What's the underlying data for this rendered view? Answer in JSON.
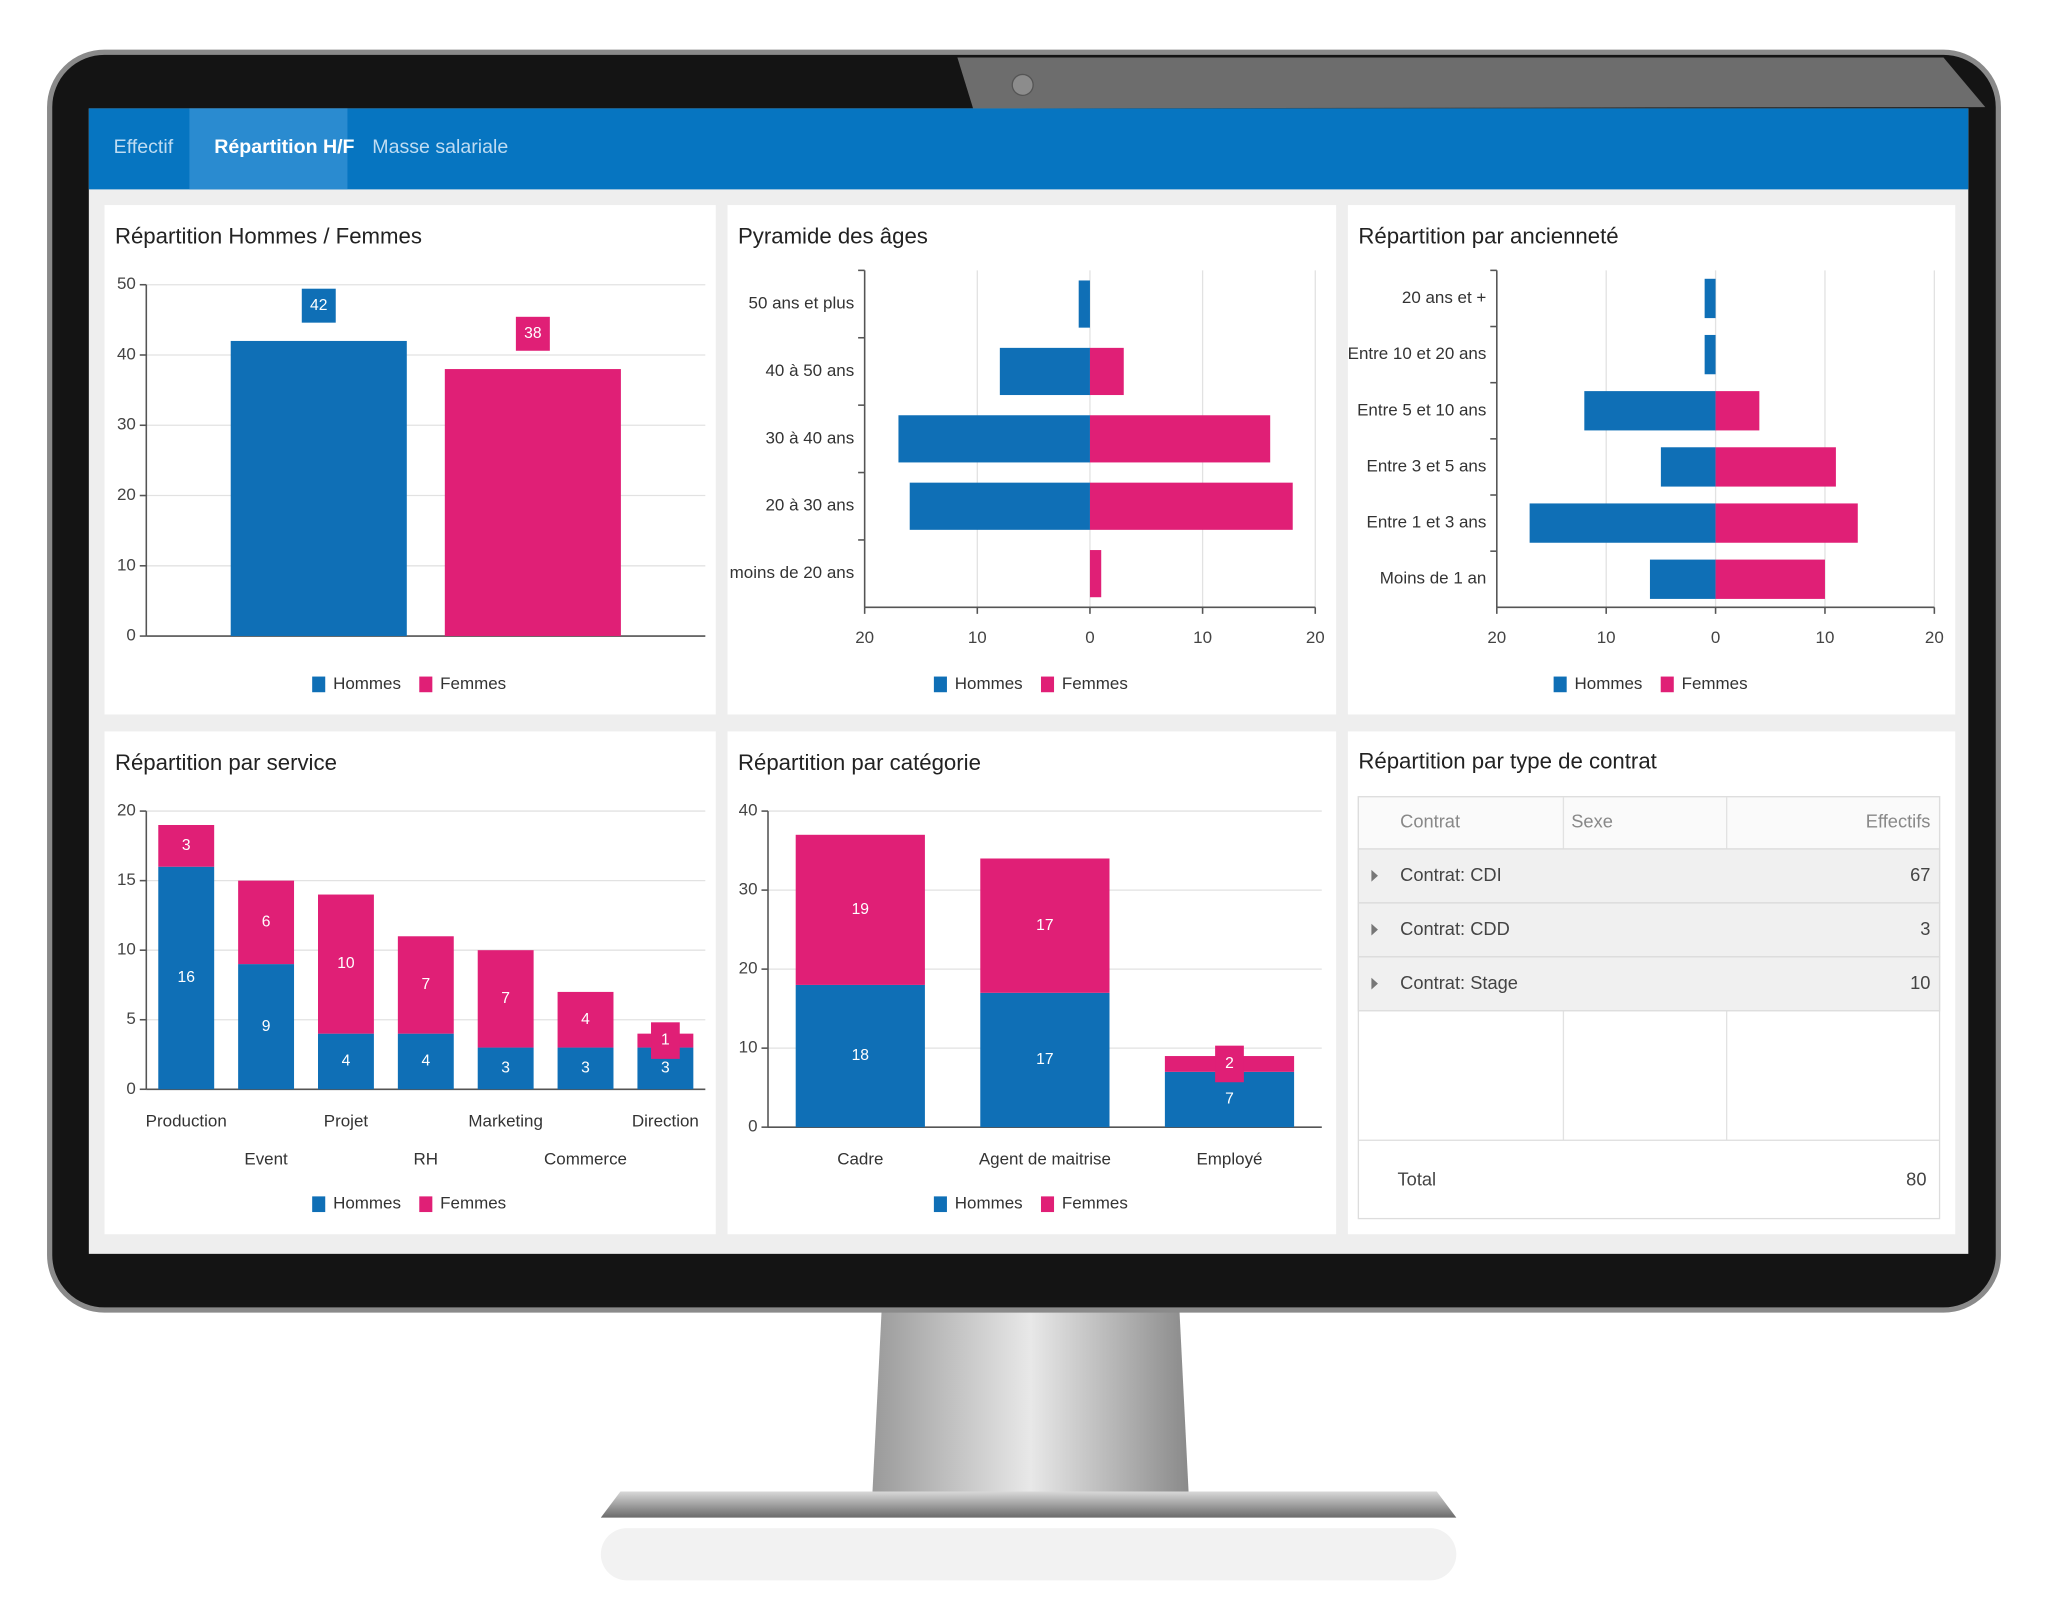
{
  "tabs": [
    "Effectif",
    "Répartition H/F",
    "Masse salariale"
  ],
  "active_tab": 1,
  "chart_data": [
    {
      "type": "bar",
      "title": "Répartition Hommes / Femmes",
      "categories": [
        null
      ],
      "series": [
        {
          "name": "Hommes",
          "color": "#0f6fb6",
          "values": [
            42
          ]
        },
        {
          "name": "Femmes",
          "color": "#e01f76",
          "values": [
            38
          ]
        }
      ],
      "ylim": [
        0,
        50
      ],
      "yticks": [
        0,
        10,
        20,
        30,
        40,
        50
      ],
      "grid": true,
      "data_labels": true
    },
    {
      "type": "pyramid",
      "title": "Pyramide des âges",
      "categories": [
        "50 ans et plus",
        "40 à 50 ans",
        "30 à 40 ans",
        "20 à 30 ans",
        "moins de 20 ans"
      ],
      "series": [
        {
          "name": "Hommes",
          "color": "#0f6fb6",
          "values": [
            -1,
            -8,
            -17,
            -16,
            0
          ]
        },
        {
          "name": "Femmes",
          "color": "#e01f76",
          "values": [
            0,
            3,
            16,
            18,
            1
          ]
        }
      ],
      "xlim": [
        -20,
        20
      ],
      "xticks": [
        {
          "value": -20,
          "label": "20"
        },
        {
          "value": -10,
          "label": "10"
        },
        0,
        10,
        20
      ],
      "grid": true
    },
    {
      "type": "pyramid",
      "title": "Répartition par ancienneté",
      "categories": [
        "20 ans et +",
        "Entre 10 et 20 ans",
        "Entre 5 et 10 ans",
        "Entre 3 et 5 ans",
        "Entre 1 et 3 ans",
        "Moins de 1 an"
      ],
      "series": [
        {
          "name": "Hommes",
          "color": "#0f6fb6",
          "values": [
            -1,
            -1,
            -12,
            -5,
            -17,
            -6
          ]
        },
        {
          "name": "Femmes",
          "color": "#e01f76",
          "values": [
            0,
            0,
            4,
            11,
            13,
            10
          ]
        }
      ],
      "xlim": [
        -20,
        20
      ],
      "xticks": [
        {
          "value": -20,
          "label": "20"
        },
        {
          "value": -10,
          "label": "10"
        },
        0,
        10,
        20
      ],
      "grid": true
    },
    {
      "type": "stacked_bar",
      "title": "Répartition par service",
      "categories": [
        "Production",
        "Event",
        "Projet",
        "RH",
        "Marketing",
        "Commerce",
        "Direction"
      ],
      "series": [
        {
          "name": "Hommes",
          "color": "#0f6fb6",
          "values": [
            16,
            9,
            4,
            4,
            3,
            3,
            3
          ]
        },
        {
          "name": "Femmes",
          "color": "#e01f76",
          "values": [
            3,
            6,
            10,
            7,
            7,
            4,
            1
          ]
        }
      ],
      "ylim": [
        0,
        20
      ],
      "yticks": [
        0,
        5,
        10,
        15,
        20
      ],
      "grid": true,
      "data_labels": true
    },
    {
      "type": "stacked_bar",
      "title": "Répartition par catégorie",
      "categories": [
        "Cadre",
        "Agent de maitrise",
        "Employé"
      ],
      "series": [
        {
          "name": "Hommes",
          "color": "#0f6fb6",
          "values": [
            18,
            17,
            7
          ]
        },
        {
          "name": "Femmes",
          "color": "#e01f76",
          "values": [
            19,
            17,
            2
          ]
        }
      ],
      "ylim": [
        0,
        40
      ],
      "yticks": [
        0,
        10,
        20,
        30,
        40
      ],
      "grid": true,
      "data_labels": true
    }
  ],
  "contract_table": {
    "title": "Répartition par type de contrat",
    "columns": [
      "Contrat",
      "Sexe",
      "Effectifs"
    ],
    "rows": [
      [
        "Contrat: CDI",
        67
      ],
      [
        "Contrat: CDD",
        3
      ],
      [
        "Contrat: Stage",
        10
      ]
    ],
    "total": [
      "Total",
      80
    ]
  }
}
